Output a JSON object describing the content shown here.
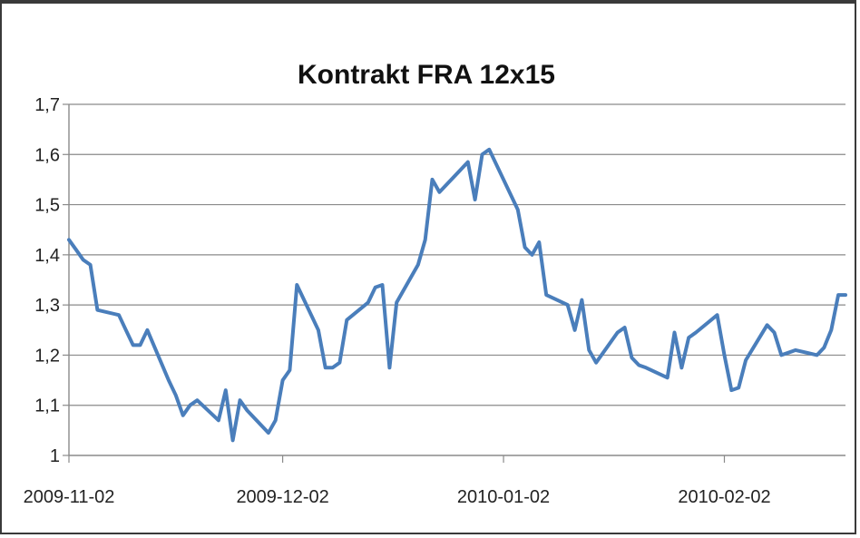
{
  "chart_data": {
    "type": "line",
    "title": "Kontrakt FRA 12x15",
    "xlabel": "",
    "ylabel": "",
    "ylim": [
      1,
      1.7
    ],
    "grid": true,
    "legend": "none",
    "line_color": "#4a7ebb",
    "grid_color": "#8a8a8a",
    "y_tick_labels": [
      "1",
      "1,1",
      "1,2",
      "1,3",
      "1,4",
      "1,5",
      "1,6",
      "1,7"
    ],
    "y_tick_values": [
      1,
      1.1,
      1.2,
      1.3,
      1.4,
      1.5,
      1.6,
      1.7
    ],
    "x_tick_labels": [
      "2009-11-02",
      "2009-12-02",
      "2010-01-02",
      "2010-02-02"
    ],
    "x_range": [
      "2009-11-02",
      "2010-02-19"
    ],
    "series": [
      {
        "x": [
          "2009-11-02",
          "2009-11-03",
          "2009-11-04",
          "2009-11-05",
          "2009-11-06",
          "2009-11-09",
          "2009-11-10",
          "2009-11-11",
          "2009-11-12",
          "2009-11-13",
          "2009-11-16",
          "2009-11-17",
          "2009-11-18",
          "2009-11-19",
          "2009-11-20",
          "2009-11-23",
          "2009-11-24",
          "2009-11-25",
          "2009-11-26",
          "2009-11-27",
          "2009-11-30",
          "2009-12-01",
          "2009-12-02",
          "2009-12-03",
          "2009-12-04",
          "2009-12-07",
          "2009-12-08",
          "2009-12-09",
          "2009-12-10",
          "2009-12-11",
          "2009-12-14",
          "2009-12-15",
          "2009-12-16",
          "2009-12-17",
          "2009-12-18",
          "2009-12-21",
          "2009-12-22",
          "2009-12-23",
          "2009-12-24",
          "2009-12-28",
          "2009-12-29",
          "2009-12-30",
          "2009-12-31",
          "2010-01-04",
          "2010-01-05",
          "2010-01-06",
          "2010-01-07",
          "2010-01-08",
          "2010-01-11",
          "2010-01-12",
          "2010-01-13",
          "2010-01-14",
          "2010-01-15",
          "2010-01-18",
          "2010-01-19",
          "2010-01-20",
          "2010-01-21",
          "2010-01-22",
          "2010-01-25",
          "2010-01-26",
          "2010-01-27",
          "2010-01-28",
          "2010-01-29",
          "2010-02-01",
          "2010-02-02",
          "2010-02-03",
          "2010-02-04",
          "2010-02-05",
          "2010-02-08",
          "2010-02-09",
          "2010-02-10",
          "2010-02-11",
          "2010-02-12",
          "2010-02-15",
          "2010-02-16",
          "2010-02-17",
          "2010-02-18",
          "2010-02-19"
        ],
        "y": [
          1.43,
          1.41,
          1.39,
          1.38,
          1.29,
          1.28,
          1.25,
          1.22,
          1.22,
          1.25,
          1.15,
          1.12,
          1.08,
          1.1,
          1.11,
          1.07,
          1.13,
          1.03,
          1.11,
          1.09,
          1.045,
          1.07,
          1.15,
          1.17,
          1.34,
          1.25,
          1.175,
          1.175,
          1.185,
          1.27,
          1.305,
          1.335,
          1.34,
          1.175,
          1.305,
          1.38,
          1.43,
          1.55,
          1.525,
          1.585,
          1.51,
          1.6,
          1.61,
          1.49,
          1.415,
          1.4,
          1.425,
          1.32,
          1.3,
          1.25,
          1.31,
          1.21,
          1.185,
          1.245,
          1.255,
          1.195,
          1.18,
          1.175,
          1.155,
          1.245,
          1.175,
          1.235,
          1.245,
          1.28,
          1.2,
          1.13,
          1.135,
          1.19,
          1.26,
          1.245,
          1.2,
          1.205,
          1.21,
          1.2,
          1.215,
          1.25,
          1.32,
          1.32
        ]
      }
    ]
  }
}
